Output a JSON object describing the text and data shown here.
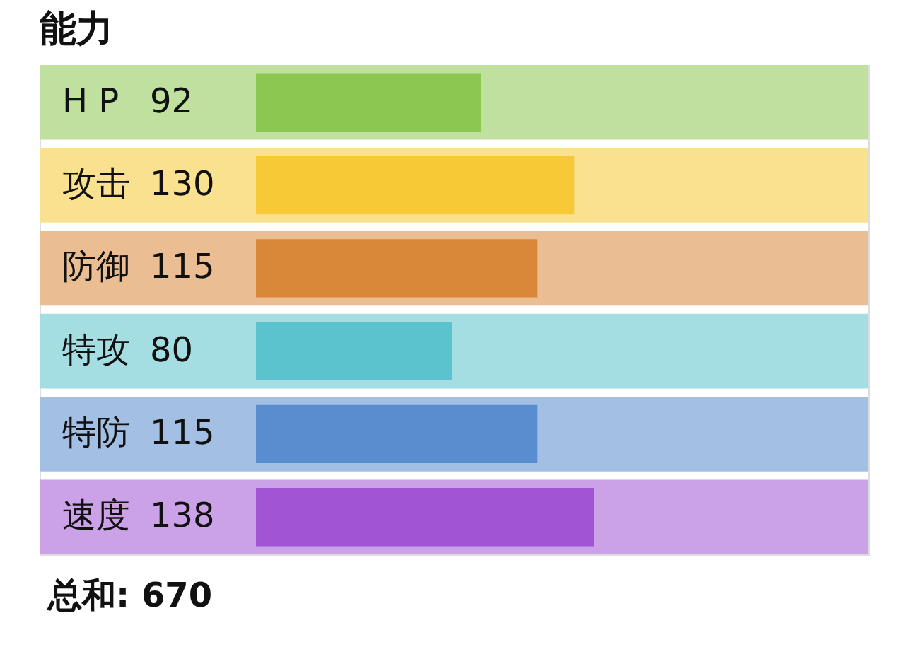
{
  "chart_data": {
    "type": "bar",
    "orientation": "horizontal",
    "title": "能力",
    "categories": [
      "H P",
      "攻击",
      "防御",
      "特攻",
      "特防",
      "速度"
    ],
    "values": [
      92,
      130,
      115,
      80,
      115,
      138
    ],
    "value_labels": [
      "92",
      "130",
      "115",
      "80",
      "115",
      "138"
    ],
    "colors": [
      "#8cc84f",
      "#f7c936",
      "#d9883a",
      "#5bc3cd",
      "#588ecf",
      "#a155d4"
    ],
    "grid": false,
    "annotations": [
      "总和: 670"
    ]
  }
}
